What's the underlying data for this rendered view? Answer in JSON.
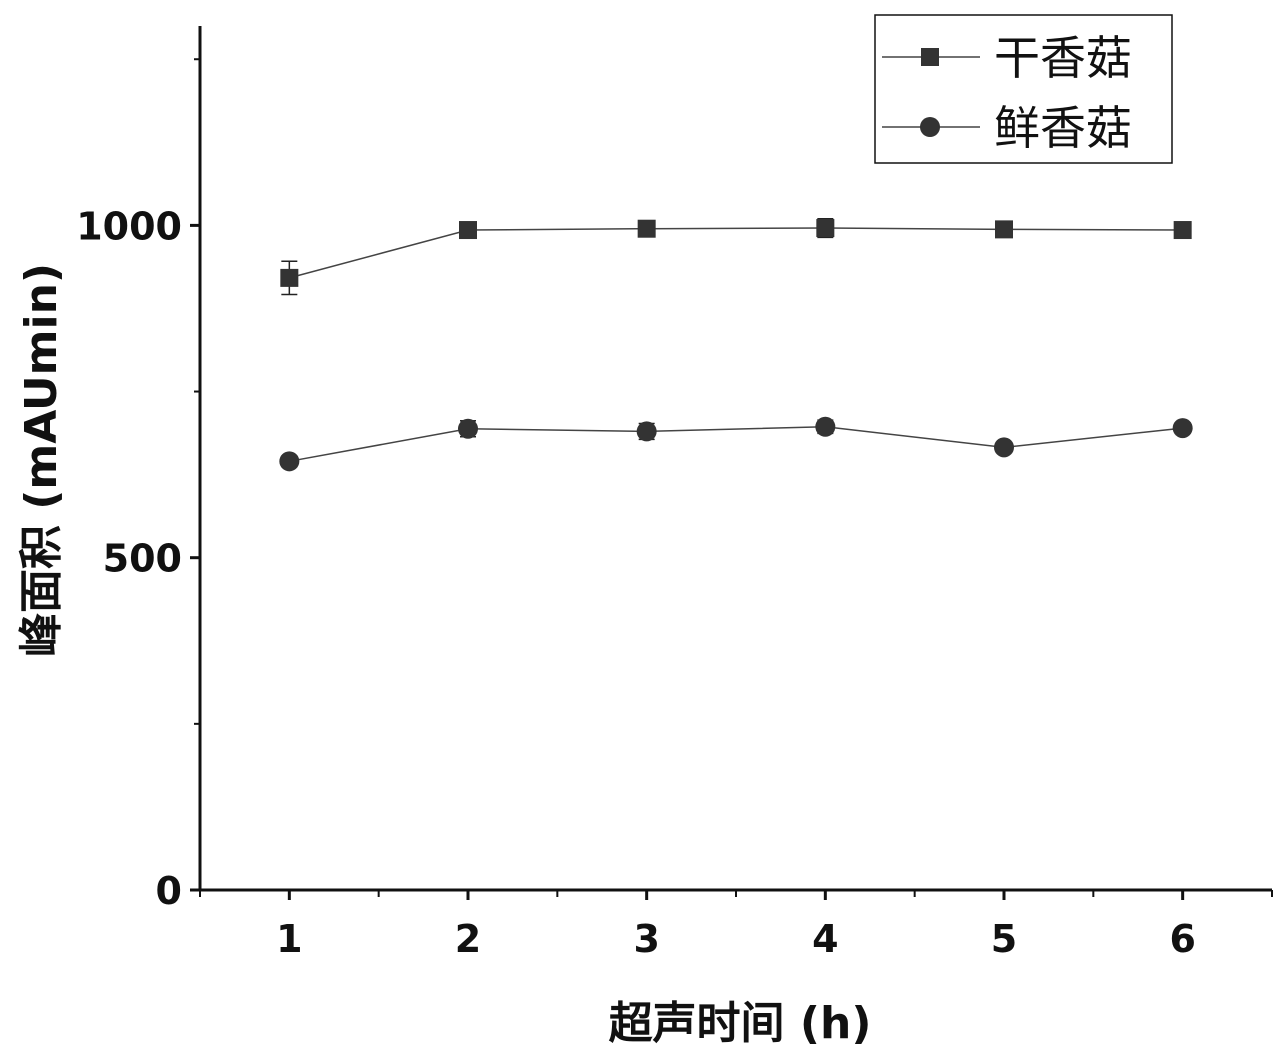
{
  "chart_data": {
    "type": "line",
    "xlabel": "超声时间 (h)",
    "ylabel": "峰面积 (mAUmin)",
    "x": [
      1,
      2,
      3,
      4,
      5,
      6
    ],
    "xlim": [
      0.5,
      6.5
    ],
    "ylim": [
      0,
      1000
    ],
    "yticks": [
      0,
      500,
      1000
    ],
    "ylim_max": 1300,
    "grid": false,
    "legend_position": "top-right",
    "series": [
      {
        "name": "干香菇",
        "marker": "square",
        "color": "#333333",
        "values": [
          921,
          993,
          995,
          996,
          994,
          993
        ],
        "errors": [
          25,
          5,
          5,
          14,
          5,
          5
        ]
      },
      {
        "name": "鲜香菇",
        "marker": "circle",
        "color": "#333333",
        "values": [
          645,
          694,
          690,
          697,
          666,
          695
        ],
        "errors": [
          8,
          12,
          12,
          10,
          6,
          8
        ]
      }
    ]
  }
}
